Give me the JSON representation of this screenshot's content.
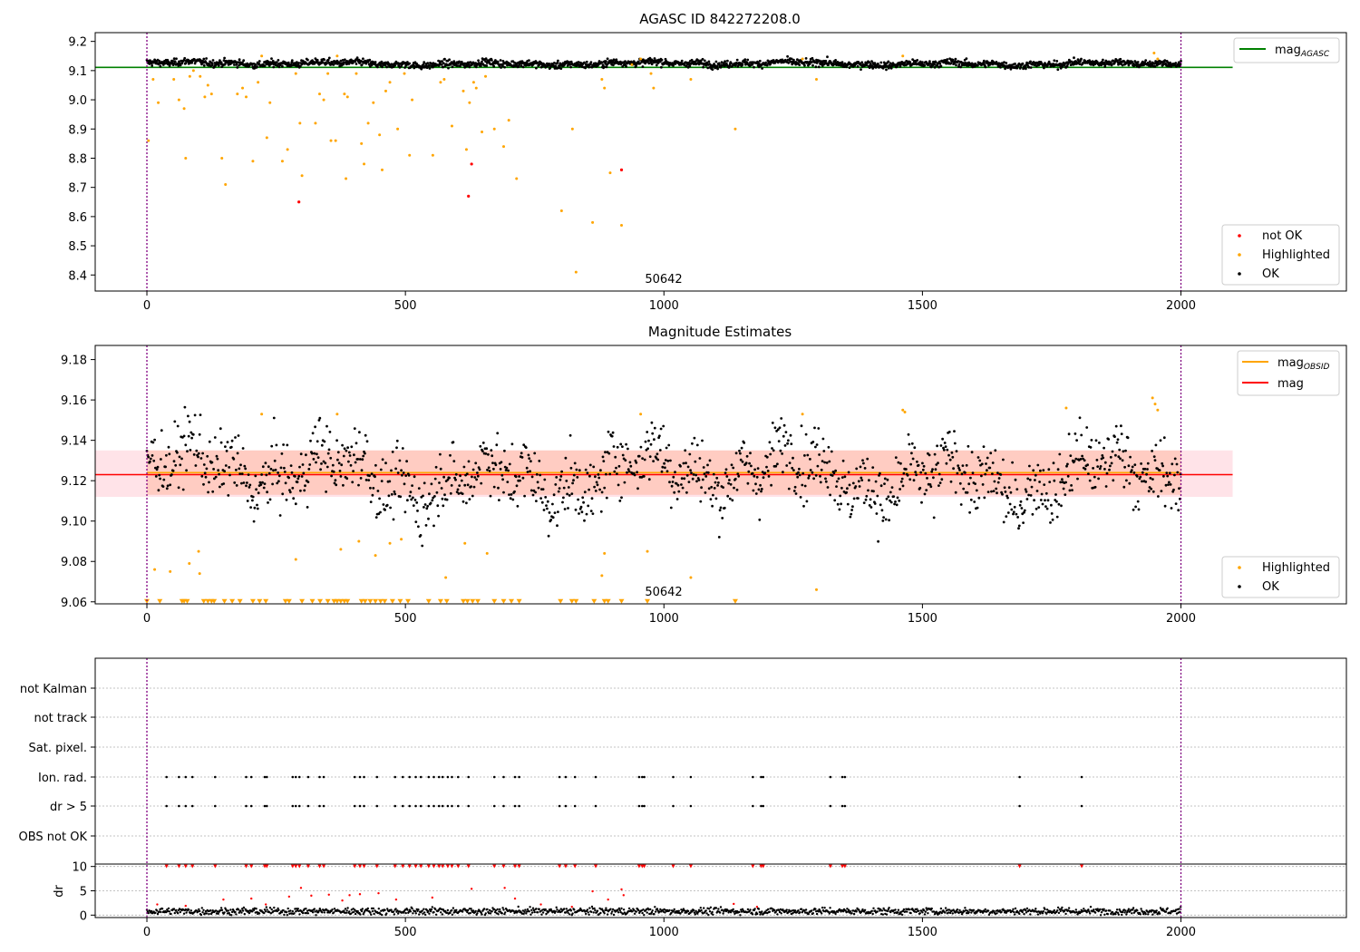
{
  "figure": {
    "panel1": {
      "title": "AGASC ID 842272208.0",
      "annotation": "50642",
      "xticks": [
        0,
        500,
        1000,
        1500,
        2000
      ],
      "yticks": [
        8.4,
        8.5,
        8.6,
        8.7,
        8.8,
        8.9,
        9.0,
        9.1,
        9.2
      ],
      "legend_top": [
        {
          "label": "mag",
          "sub": "AGASC",
          "color": "#008000",
          "kind": "line"
        }
      ],
      "legend_bottom": [
        {
          "label": "not OK",
          "color": "#ff0000",
          "kind": "dot"
        },
        {
          "label": "Highlighted",
          "color": "#ffa500",
          "kind": "dot"
        },
        {
          "label": "OK",
          "color": "#000000",
          "kind": "dot"
        }
      ]
    },
    "panel2": {
      "title": "Magnitude Estimates",
      "annotation": "50642",
      "xticks": [
        0,
        500,
        1000,
        1500,
        2000
      ],
      "yticks": [
        9.06,
        9.08,
        9.1,
        9.12,
        9.14,
        9.16,
        9.18
      ],
      "legend_top": [
        {
          "label": "mag",
          "sub": "OBSID",
          "color": "#ffa500",
          "kind": "line"
        },
        {
          "label": "mag",
          "sub": "",
          "color": "#ff0000",
          "kind": "line"
        }
      ],
      "legend_bottom": [
        {
          "label": "Highlighted",
          "color": "#ffa500",
          "kind": "dot"
        },
        {
          "label": "OK",
          "color": "#000000",
          "kind": "dot"
        }
      ]
    },
    "panel3": {
      "flags": [
        "not Kalman",
        "not track",
        "Sat. pixel.",
        "Ion. rad.",
        "dr > 5",
        "OBS not OK"
      ],
      "dr_label": "dr",
      "dr_ticks": [
        0,
        5,
        10
      ],
      "xticks": [
        0,
        500,
        1000,
        1500,
        2000
      ]
    }
  },
  "chart_data": [
    {
      "type": "scatter",
      "title": "AGASC ID 842272208.0",
      "xlim": [
        -100,
        2320
      ],
      "ylim": [
        8.345,
        9.23
      ],
      "grid": false,
      "legend_placement": [
        "upper right",
        "lower right"
      ],
      "reference_lines": {
        "mag_AGASC": 9.111
      },
      "vertical_markers_x": [
        0,
        2000
      ],
      "series": [
        {
          "name": "OK",
          "color": "#000000",
          "approx_mean": 9.124,
          "approx_spread": 0.012,
          "x_range": [
            0,
            2000
          ]
        },
        {
          "name": "Highlighted",
          "color": "#ffa500",
          "points": [
            [
              3,
              8.86
            ],
            [
              12,
              9.07
            ],
            [
              22,
              8.99
            ],
            [
              52,
              9.07
            ],
            [
              62,
              9.0
            ],
            [
              72,
              8.97
            ],
            [
              75,
              8.8
            ],
            [
              83,
              9.08
            ],
            [
              90,
              9.1
            ],
            [
              103,
              9.08
            ],
            [
              112,
              9.01
            ],
            [
              118,
              9.05
            ],
            [
              125,
              9.02
            ],
            [
              145,
              8.8
            ],
            [
              152,
              8.71
            ],
            [
              175,
              9.02
            ],
            [
              185,
              9.04
            ],
            [
              192,
              9.01
            ],
            [
              205,
              8.79
            ],
            [
              215,
              9.06
            ],
            [
              222,
              9.15
            ],
            [
              232,
              8.87
            ],
            [
              238,
              8.99
            ],
            [
              262,
              8.79
            ],
            [
              272,
              8.83
            ],
            [
              288,
              9.09
            ],
            [
              296,
              8.92
            ],
            [
              300,
              8.74
            ],
            [
              326,
              8.92
            ],
            [
              334,
              9.02
            ],
            [
              342,
              9.0
            ],
            [
              350,
              9.09
            ],
            [
              356,
              8.86
            ],
            [
              365,
              8.86
            ],
            [
              368,
              9.15
            ],
            [
              382,
              9.02
            ],
            [
              385,
              8.73
            ],
            [
              388,
              9.01
            ],
            [
              405,
              9.09
            ],
            [
              415,
              8.85
            ],
            [
              420,
              8.78
            ],
            [
              428,
              8.92
            ],
            [
              438,
              8.99
            ],
            [
              450,
              8.88
            ],
            [
              455,
              8.76
            ],
            [
              462,
              9.03
            ],
            [
              470,
              9.06
            ],
            [
              485,
              8.9
            ],
            [
              498,
              9.09
            ],
            [
              508,
              8.81
            ],
            [
              513,
              9.0
            ],
            [
              553,
              8.81
            ],
            [
              568,
              9.06
            ],
            [
              575,
              9.07
            ],
            [
              590,
              8.91
            ],
            [
              612,
              9.03
            ],
            [
              618,
              8.83
            ],
            [
              624,
              8.99
            ],
            [
              632,
              9.06
            ],
            [
              637,
              9.04
            ],
            [
              648,
              8.89
            ],
            [
              655,
              9.08
            ],
            [
              672,
              8.9
            ],
            [
              690,
              8.84
            ],
            [
              700,
              8.93
            ],
            [
              715,
              8.73
            ],
            [
              802,
              8.62
            ],
            [
              823,
              8.9
            ],
            [
              830,
              8.41
            ],
            [
              862,
              8.58
            ],
            [
              880,
              9.07
            ],
            [
              885,
              9.04
            ],
            [
              896,
              8.75
            ],
            [
              918,
              8.57
            ],
            [
              938,
              9.12
            ],
            [
              955,
              9.14
            ],
            [
              975,
              9.09
            ],
            [
              980,
              9.04
            ],
            [
              1052,
              9.07
            ],
            [
              1138,
              8.9
            ],
            [
              1268,
              9.14
            ],
            [
              1295,
              9.07
            ],
            [
              1462,
              9.15
            ],
            [
              1948,
              9.16
            ],
            [
              1955,
              9.14
            ]
          ]
        },
        {
          "name": "not OK",
          "color": "#ff0000",
          "points": [
            [
              294,
              8.65
            ],
            [
              622,
              8.67
            ],
            [
              628,
              8.78
            ],
            [
              918,
              8.76
            ]
          ]
        }
      ]
    },
    {
      "type": "scatter",
      "title": "Magnitude Estimates",
      "xlim": [
        -100,
        2320
      ],
      "ylim": [
        9.059,
        9.187
      ],
      "grid": false,
      "legend_placement": [
        "upper right",
        "lower right"
      ],
      "reference_lines": {
        "mag": 9.123,
        "mag_OBSID_mean": 9.124
      },
      "bands": [
        {
          "label": "mag_OBSID range",
          "y": [
            9.113,
            9.135
          ],
          "x": [
            0,
            2000
          ],
          "color": "#ffa07a"
        },
        {
          "label": "mag range",
          "y": [
            9.112,
            9.135
          ],
          "x": [
            -100,
            2100
          ],
          "color": "#ffc0cb"
        }
      ],
      "vertical_markers_x": [
        0,
        2000
      ],
      "series": [
        {
          "name": "OK",
          "color": "#000000",
          "approx_mean": 9.123,
          "approx_spread": 0.011,
          "x_range": [
            0,
            2000
          ]
        },
        {
          "name": "Highlighted",
          "color": "#ffa500",
          "points": [
            [
              15,
              9.076
            ],
            [
              45,
              9.075
            ],
            [
              82,
              9.079
            ],
            [
              100,
              9.085
            ],
            [
              102,
              9.074
            ],
            [
              222,
              9.153
            ],
            [
              288,
              9.081
            ],
            [
              368,
              9.153
            ],
            [
              375,
              9.086
            ],
            [
              410,
              9.09
            ],
            [
              442,
              9.083
            ],
            [
              470,
              9.089
            ],
            [
              492,
              9.091
            ],
            [
              578,
              9.072
            ],
            [
              615,
              9.089
            ],
            [
              658,
              9.084
            ],
            [
              880,
              9.073
            ],
            [
              885,
              9.084
            ],
            [
              955,
              9.153
            ],
            [
              968,
              9.085
            ],
            [
              1052,
              9.072
            ],
            [
              1268,
              9.153
            ],
            [
              1295,
              9.066
            ],
            [
              1462,
              9.155
            ],
            [
              1466,
              9.154
            ],
            [
              1778,
              9.156
            ],
            [
              1945,
              9.161
            ],
            [
              1950,
              9.158
            ],
            [
              1955,
              9.155
            ]
          ]
        },
        {
          "name": "Highlighted (below axis)",
          "color": "#ffa500",
          "marker": "triangle-down",
          "y": 9.06,
          "x": [
            0,
            25,
            68,
            72,
            78,
            110,
            118,
            125,
            130,
            150,
            165,
            180,
            205,
            218,
            230,
            268,
            275,
            300,
            320,
            335,
            350,
            362,
            368,
            375,
            382,
            388,
            415,
            422,
            432,
            442,
            452,
            460,
            475,
            490,
            505,
            545,
            568,
            580,
            612,
            620,
            630,
            640,
            672,
            690,
            705,
            720,
            800,
            822,
            830,
            865,
            885,
            892,
            918,
            968,
            1138
          ]
        }
      ]
    },
    {
      "type": "scatter",
      "title": "",
      "flags": [
        "not Kalman",
        "not track",
        "Sat. pixel.",
        "Ion. rad.",
        "dr > 5",
        "OBS not OK"
      ],
      "flag_events": {
        "Ion. rad.": [
          38,
          62,
          75,
          88,
          132,
          192,
          202,
          228,
          232,
          282,
          288,
          295,
          312,
          334,
          342,
          402,
          412,
          420,
          445,
          480,
          495,
          508,
          520,
          530,
          545,
          555,
          565,
          572,
          582,
          590,
          602,
          622,
          672,
          690,
          712,
          720,
          798,
          810,
          828,
          868,
          952,
          958,
          962,
          1018,
          1052,
          1172,
          1188,
          1192,
          1322,
          1345,
          1350,
          1688,
          1808
        ],
        "dr > 5": [
          38,
          62,
          75,
          88,
          132,
          192,
          202,
          228,
          232,
          282,
          288,
          295,
          312,
          334,
          342,
          402,
          412,
          420,
          445,
          480,
          495,
          508,
          520,
          530,
          545,
          555,
          565,
          572,
          582,
          590,
          602,
          622,
          672,
          690,
          712,
          720,
          798,
          810,
          828,
          868,
          952,
          958,
          962,
          1018,
          1052,
          1172,
          1188,
          1192,
          1322,
          1345,
          1350,
          1688,
          1808
        ]
      },
      "dr": {
        "ylim": [
          -0.5,
          10.5
        ],
        "ylabel": "dr",
        "typical": 0.8,
        "clipped_at": 10,
        "outliers": [
          [
            20,
            2.2
          ],
          [
            75,
            1.9
          ],
          [
            148,
            3.2
          ],
          [
            202,
            3.4
          ],
          [
            230,
            2.2
          ],
          [
            275,
            3.8
          ],
          [
            298,
            5.6
          ],
          [
            318,
            4.0
          ],
          [
            352,
            4.2
          ],
          [
            378,
            3.0
          ],
          [
            392,
            4.1
          ],
          [
            412,
            4.3
          ],
          [
            448,
            4.5
          ],
          [
            482,
            3.2
          ],
          [
            552,
            3.6
          ],
          [
            628,
            5.4
          ],
          [
            692,
            5.6
          ],
          [
            712,
            3.4
          ],
          [
            762,
            2.2
          ],
          [
            822,
            1.7
          ],
          [
            862,
            4.9
          ],
          [
            892,
            3.2
          ],
          [
            918,
            5.3
          ],
          [
            922,
            4.1
          ],
          [
            1135,
            2.3
          ],
          [
            1180,
            1.7
          ]
        ]
      }
    }
  ]
}
